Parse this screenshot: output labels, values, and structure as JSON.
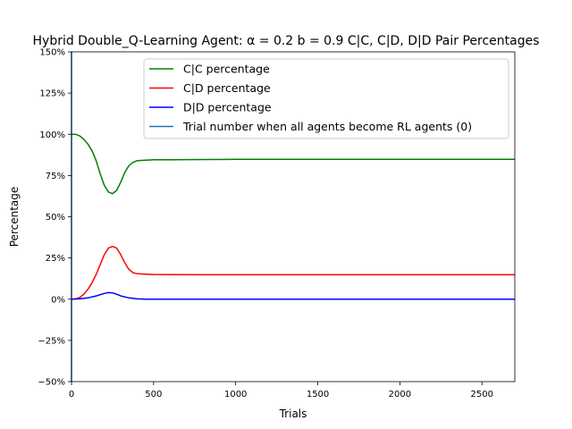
{
  "chart_data": {
    "type": "line",
    "title": "Hybrid Double_Q-Learning Agent: α = 0.2 b = 0.9  C|C, C|D, D|D Pair Percentages",
    "xlabel": "Trials",
    "ylabel": "Percentage",
    "xlim": [
      0,
      2700
    ],
    "ylim": [
      -50,
      150
    ],
    "xticks": [
      0,
      500,
      1000,
      1500,
      2000,
      2500
    ],
    "yticks": [
      -50,
      -25,
      0,
      25,
      50,
      75,
      100,
      125,
      150
    ],
    "ytick_labels": [
      "−50%",
      "−25%",
      "0%",
      "25%",
      "50%",
      "75%",
      "100%",
      "125%",
      "150%"
    ],
    "grid": false,
    "legend_position": "top-center",
    "series": [
      {
        "name": "C|C percentage",
        "color": "#008000",
        "x": [
          0,
          25,
          50,
          75,
          100,
          125,
          150,
          175,
          200,
          225,
          250,
          275,
          300,
          325,
          350,
          375,
          400,
          450,
          500,
          600,
          800,
          1000,
          1500,
          2000,
          2500,
          2700
        ],
        "y": [
          100,
          100,
          99,
          97,
          94,
          90,
          84,
          76,
          69,
          65,
          64,
          66,
          71,
          77,
          81,
          83,
          84,
          84.3,
          84.5,
          84.6,
          84.7,
          84.8,
          84.8,
          84.8,
          84.8,
          84.8
        ]
      },
      {
        "name": "C|D percentage",
        "color": "#ff0000",
        "x": [
          0,
          25,
          50,
          75,
          100,
          125,
          150,
          175,
          200,
          225,
          250,
          275,
          300,
          325,
          350,
          375,
          400,
          450,
          500,
          600,
          800,
          1000,
          1500,
          2000,
          2500,
          2700
        ],
        "y": [
          0,
          0.2,
          1,
          3,
          6,
          10,
          15,
          21,
          27,
          31,
          32,
          31,
          27,
          22,
          18,
          16,
          15.5,
          15.2,
          15,
          14.9,
          14.8,
          14.8,
          14.8,
          14.8,
          14.8,
          14.8
        ]
      },
      {
        "name": "D|D percentage",
        "color": "#0000ff",
        "x": [
          0,
          50,
          100,
          150,
          200,
          225,
          250,
          275,
          300,
          350,
          400,
          450,
          500,
          1000,
          1500,
          2000,
          2500,
          2700
        ],
        "y": [
          0,
          0.2,
          0.8,
          2,
          3.5,
          4,
          3.8,
          3,
          2,
          0.8,
          0.2,
          0.05,
          0,
          0,
          0,
          0,
          0,
          0
        ]
      },
      {
        "name": "Trial number when all agents become RL agents (0)",
        "color": "#1f77b4",
        "type": "vline",
        "x_value": 0
      }
    ]
  }
}
